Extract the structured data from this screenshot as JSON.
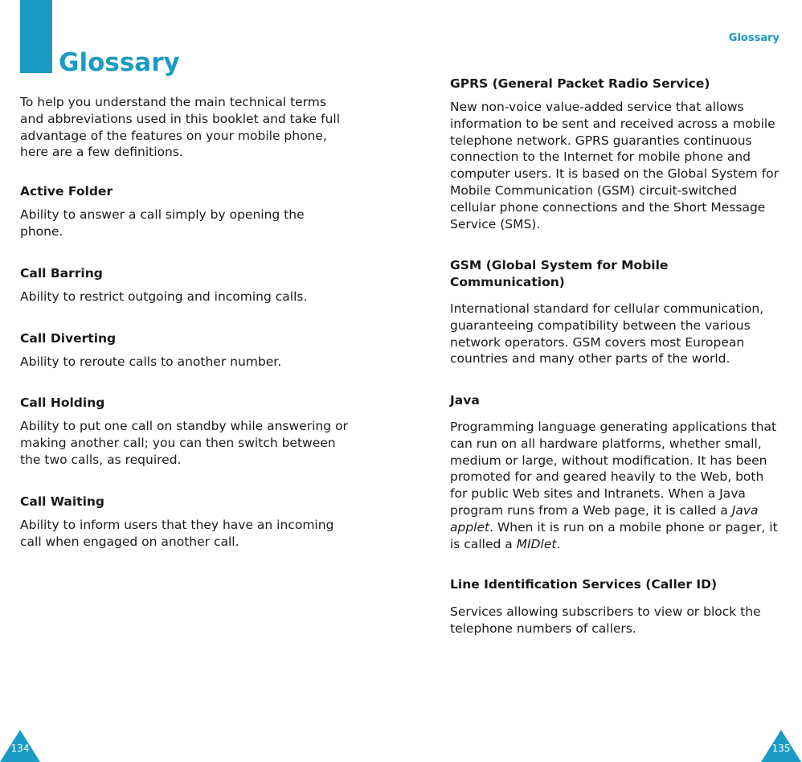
{
  "left_page": {
    "title": "Glossary",
    "intro": "To help you understand the main technical terms and abbreviations used in this booklet and take full advantage of the features on your mobile phone, here are a few definitions.",
    "entries": [
      {
        "term": "Active Folder",
        "definition": "Ability to answer a call simply by opening the phone."
      },
      {
        "term": "Call Barring",
        "definition": "Ability to restrict outgoing and incoming calls."
      },
      {
        "term": "Call Diverting",
        "definition": "Ability to reroute calls to another number."
      },
      {
        "term": "Call Holding",
        "definition": "Ability to put one call on standby while answering or making another call; you can then switch between the two calls, as required."
      },
      {
        "term": "Call Waiting",
        "definition": "Ability to inform users that they have an incoming call when engaged on another call."
      }
    ],
    "page_number": "134"
  },
  "right_page": {
    "running_head": "Glossary",
    "entries": [
      {
        "term": "GPRS (General Packet Radio Service)",
        "definition": "New non-voice value-added service that allows information to be sent and received across a mobile telephone network. GPRS guaranties continuous connection to the Internet for mobile phone and computer users. It is based on the Global System for Mobile Communication (GSM) circuit-switched cellular phone connections and the Short Message Service (SMS)."
      },
      {
        "term": "GSM (Global System for Mobile Communication)",
        "definition": "International standard for cellular communication, guaranteeing compatibility between the various network operators. GSM covers most European countries and many other parts of the world."
      },
      {
        "term": "Java",
        "definition_parts": [
          "Programming language generating applications that can run on all hardware platforms, whether small, medium or large, without modification. It has been promoted for and geared heavily to the Web, both for public Web sites and Intranets. When a Java program runs from a Web page, it is called a ",
          "Java applet",
          ". When it is run on a mobile phone or pager, it is called a ",
          "MIDlet",
          "."
        ]
      },
      {
        "term": "Line Identification Services (Caller ID)",
        "definition": "Services allowing subscribers to view or block the telephone numbers of callers."
      }
    ],
    "page_number": "135"
  },
  "colors": {
    "accent": "#1a9bc3"
  }
}
